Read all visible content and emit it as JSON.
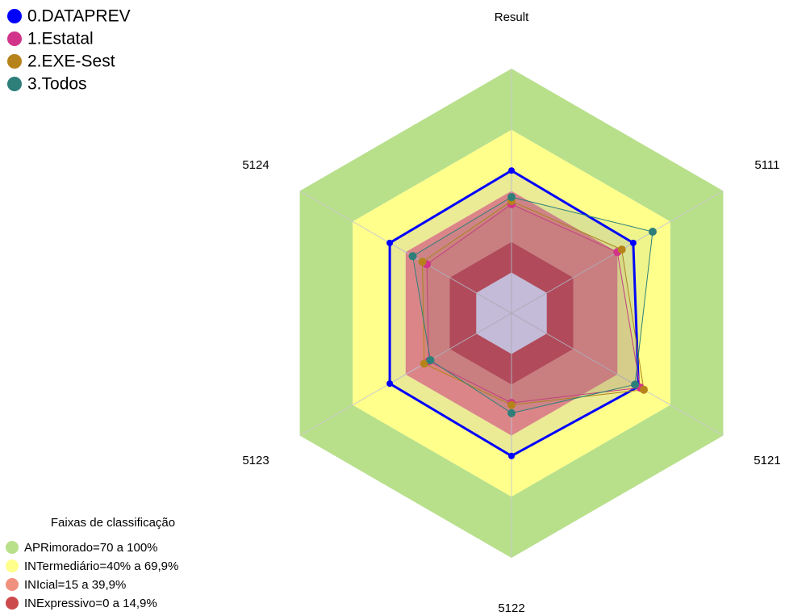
{
  "chart_data": {
    "type": "radar",
    "categories": [
      "Result",
      "5111",
      "5121",
      "5122",
      "5123",
      "5124"
    ],
    "ylim": [
      -20,
      100
    ],
    "center_color": "#e6e6fa",
    "bands": [
      {
        "label": "APRimorado=70 a 100%",
        "from": 70,
        "to": 100,
        "color": "#b8e08a"
      },
      {
        "label": "INTermediário=40% a 69,9%",
        "from": 40,
        "to": 70,
        "color": "#ffff8c"
      },
      {
        "label": "INIcial=15 a 39,9%",
        "from": 15,
        "to": 40,
        "color": "#ef917e"
      },
      {
        "label": "INExpressivo=0 a 14,9%",
        "from": 0,
        "to": 15,
        "color": "#cd4a4c"
      }
    ],
    "bands_title": "Faixas de classificação",
    "series": [
      {
        "name": "0.DATAPREV",
        "color": "#0000ff",
        "values": [
          50,
          49,
          52,
          50,
          49,
          49
        ]
      },
      {
        "name": "1.Estatal",
        "color": "#d1348a",
        "values": [
          33.5,
          40,
          53,
          24,
          27,
          28
        ]
      },
      {
        "name": "2.EXE-Sest",
        "color": "#b5831a",
        "values": [
          35,
          42.5,
          55,
          25,
          29.5,
          30.5
        ]
      },
      {
        "name": "3.Todos",
        "color": "#2e7f7a",
        "values": [
          37,
          60,
          50,
          29,
          26,
          36
        ]
      }
    ]
  }
}
